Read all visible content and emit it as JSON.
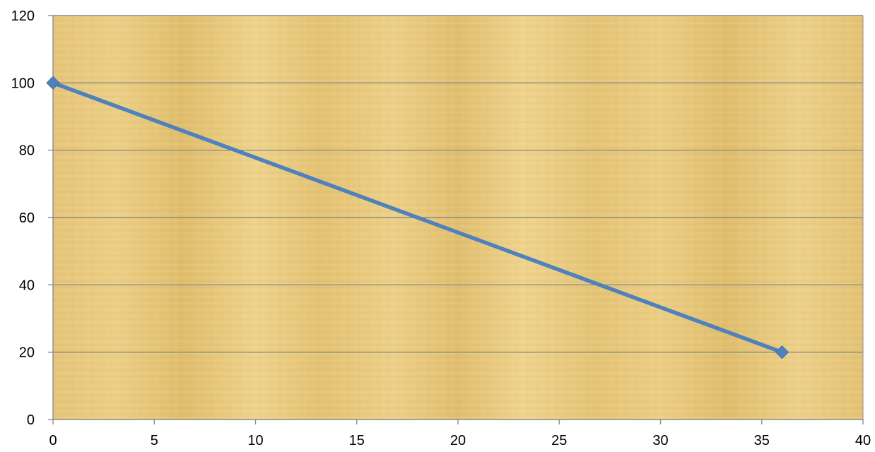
{
  "chart_data": {
    "type": "scatter",
    "series": [
      {
        "points": [
          [
            0,
            100
          ],
          [
            36,
            20
          ]
        ],
        "color": "#4f81bd",
        "marker": "diamond",
        "line": "straight"
      }
    ],
    "xlim": [
      0,
      40
    ],
    "ylim": [
      0,
      120
    ],
    "x_ticks": [
      0,
      5,
      10,
      15,
      20,
      25,
      30,
      35,
      40
    ],
    "y_ticks": [
      0,
      20,
      40,
      60,
      80,
      100,
      120
    ],
    "horizontal_grid": true,
    "vertical_grid": false,
    "plot_area_texture": "papyrus",
    "plot_area_color": "#e8c878",
    "gridline_color": "#8c8c8c"
  }
}
